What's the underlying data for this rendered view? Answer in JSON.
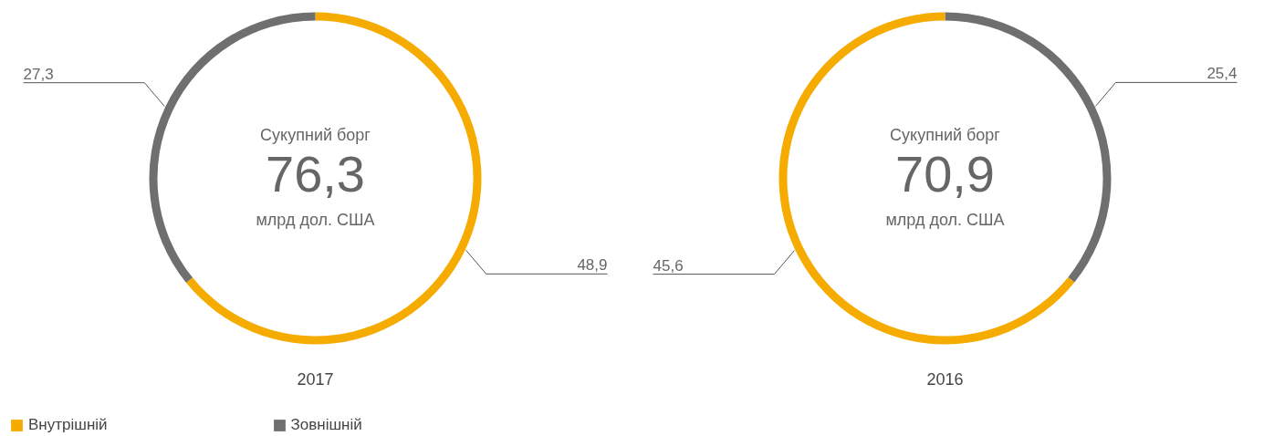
{
  "chart_data": [
    {
      "type": "donut",
      "title": "2017",
      "categories": [
        "Внутрішній",
        "Зовнішній"
      ],
      "values": [
        48.9,
        27.3
      ],
      "colors": [
        "#f5ab00",
        "#6f6f6f"
      ],
      "value_labels": [
        "48,9",
        "27,3"
      ],
      "annotations": [
        "Сукупний борг",
        "76,3",
        "млрд дол. США"
      ],
      "legend": "bottom"
    },
    {
      "type": "donut",
      "title": "2016",
      "values": [
        25.4,
        45.6
      ],
      "colors": [
        "#6f6f6f",
        "#f5ab00"
      ],
      "value_labels": [
        "25,4",
        "45,6"
      ],
      "annotations": [
        "Сукупний борг",
        "70,9",
        "млрд дол. США"
      ]
    }
  ]
}
